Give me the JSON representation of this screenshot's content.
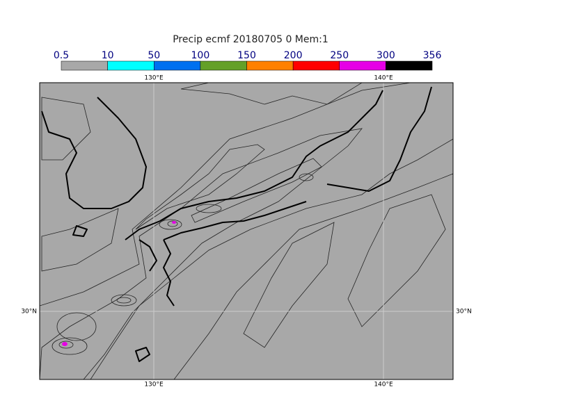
{
  "title": "Precip ecmf 20180705 0 Mem:1",
  "colorbar": {
    "levels": [
      0.5,
      10,
      50,
      100,
      150,
      200,
      250,
      300,
      356
    ],
    "colors": [
      "#a8a8a8",
      "#00ffff",
      "#0070f0",
      "#64a028",
      "#ff8000",
      "#ff0000",
      "#e600e6",
      "#000000"
    ]
  },
  "map": {
    "lon_labels": [
      "130°E",
      "140°E"
    ],
    "lat_labels": [
      "30°N"
    ]
  }
}
